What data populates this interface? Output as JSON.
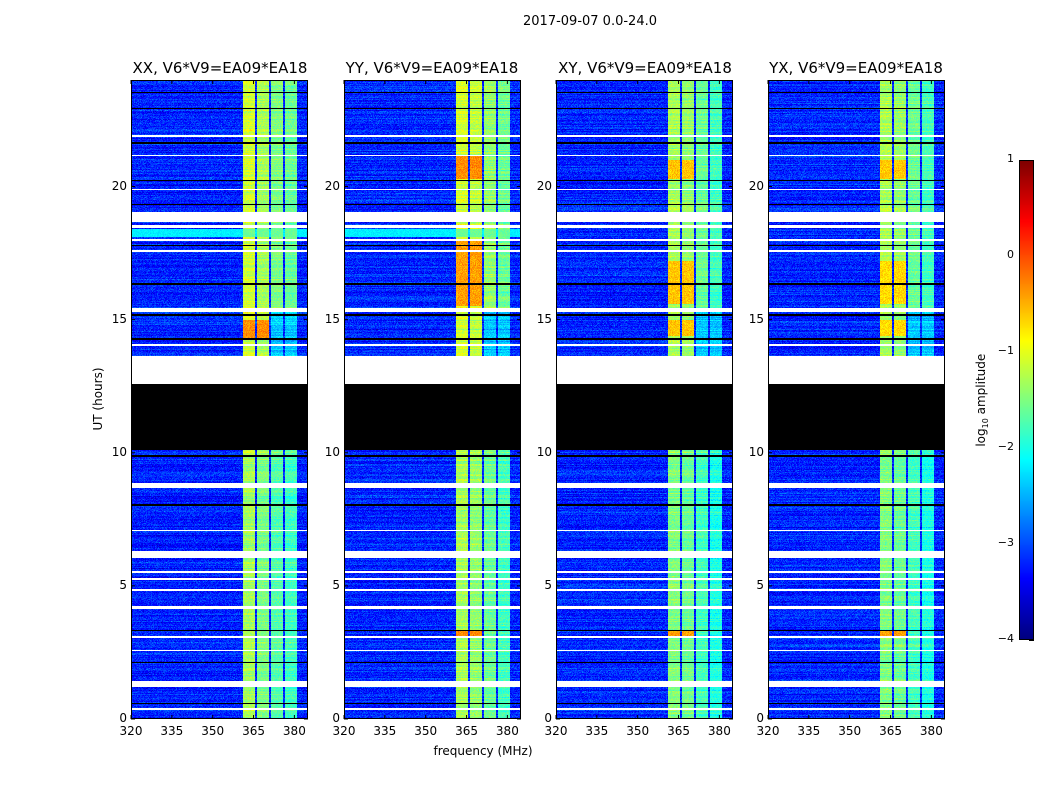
{
  "suptitle": "2017-09-07 0.0-24.0",
  "chart_data": {
    "type": "heatmap",
    "xlabel": "frequency (MHz)",
    "ylabel": "UT (hours)",
    "xlim": [
      320,
      385
    ],
    "ylim": [
      0,
      24
    ],
    "xticks": [
      320,
      335,
      350,
      365,
      380
    ],
    "yticks": [
      0,
      5,
      10,
      15,
      20
    ],
    "colorbar": {
      "label_main": "log",
      "label_sub": "10",
      "label_rest": " amplitude",
      "colormap": "jet",
      "range": [
        -4,
        1
      ],
      "ticks": [
        1,
        0,
        -1,
        -2,
        -3,
        -4
      ],
      "tick_labels": [
        "1",
        "0",
        "−1",
        "−2",
        "−3",
        "−4"
      ]
    },
    "background_level": -3.2,
    "bands_mhz": [
      [
        361,
        365.6
      ],
      [
        366.3,
        370.6
      ],
      [
        371.4,
        375.8
      ],
      [
        376.5,
        380.8
      ]
    ],
    "flagged_white_hours": [
      [
        18.65,
        19.05
      ],
      [
        18.45,
        18.55
      ],
      [
        17.95,
        18.02
      ],
      [
        12.6,
        13.65
      ],
      [
        8.68,
        8.86
      ],
      [
        6.05,
        6.3
      ],
      [
        5.47,
        5.55
      ],
      [
        5.23,
        5.3
      ],
      [
        4.82,
        4.9
      ],
      [
        4.15,
        4.23
      ],
      [
        3.05,
        3.1
      ],
      [
        1.2,
        1.42
      ],
      [
        0.32,
        0.4
      ],
      [
        21.85,
        21.92
      ],
      [
        21.15,
        21.2
      ],
      [
        19.85,
        19.9
      ],
      [
        17.55,
        17.6
      ],
      [
        15.3,
        15.45
      ],
      [
        14.0,
        14.08
      ],
      [
        7.05,
        7.1
      ],
      [
        2.55,
        2.6
      ]
    ],
    "zero_black_hours": [
      [
        10.1,
        12.6
      ],
      [
        23.5,
        23.55
      ],
      [
        22.9,
        22.95
      ],
      [
        21.6,
        21.66
      ],
      [
        20.2,
        20.26
      ],
      [
        19.3,
        19.36
      ],
      [
        17.75,
        17.8
      ],
      [
        16.3,
        16.36
      ],
      [
        15.15,
        15.2
      ],
      [
        14.25,
        14.3
      ],
      [
        9.85,
        9.9
      ],
      [
        8.0,
        8.06
      ],
      [
        3.3,
        3.35
      ],
      [
        2.1,
        2.15
      ],
      [
        0.55,
        0.6
      ]
    ],
    "panels": [
      {
        "title": "XX, V6*V9=EA09*EA18",
        "band_levels": [
          -1.1,
          -1.3,
          -1.5,
          -1.6
        ],
        "hot": [
          {
            "hours": [
              14.3,
              15.0
            ],
            "bands": [
              0,
              1
            ],
            "level": -0.3
          },
          {
            "hours": [
              18.1,
              18.4
            ],
            "bands": [
              -1
            ],
            "level": -2.2
          }
        ]
      },
      {
        "title": "YY, V6*V9=EA09*EA18",
        "band_levels": [
          -1.1,
          -1.2,
          -1.4,
          -1.6
        ],
        "hot": [
          {
            "hours": [
              20.3,
              21.2
            ],
            "bands": [
              0,
              1
            ],
            "level": -0.3
          },
          {
            "hours": [
              15.5,
              18.0
            ],
            "bands": [
              0,
              1
            ],
            "level": -0.4
          },
          {
            "hours": [
              3.1,
              3.3
            ],
            "bands": [
              0,
              1
            ],
            "level": -0.3
          },
          {
            "hours": [
              18.1,
              18.4
            ],
            "bands": [
              -1
            ],
            "level": -2.2
          }
        ]
      },
      {
        "title": "XY, V6*V9=EA09*EA18",
        "band_levels": [
          -1.3,
          -1.4,
          -1.6,
          -1.8
        ],
        "hot": [
          {
            "hours": [
              20.3,
              21.0
            ],
            "bands": [
              0,
              1
            ],
            "level": -0.6
          },
          {
            "hours": [
              15.6,
              17.2
            ],
            "bands": [
              0,
              1
            ],
            "level": -0.6
          },
          {
            "hours": [
              14.4,
              15.0
            ],
            "bands": [
              0,
              1
            ],
            "level": -0.6
          },
          {
            "hours": [
              3.1,
              3.3
            ],
            "bands": [
              0,
              1
            ],
            "level": -0.4
          }
        ]
      },
      {
        "title": "YX, V6*V9=EA09*EA18",
        "band_levels": [
          -1.3,
          -1.4,
          -1.6,
          -1.8
        ],
        "hot": [
          {
            "hours": [
              20.3,
              21.0
            ],
            "bands": [
              0,
              1
            ],
            "level": -0.6
          },
          {
            "hours": [
              15.6,
              17.2
            ],
            "bands": [
              0,
              1
            ],
            "level": -0.7
          },
          {
            "hours": [
              14.4,
              15.0
            ],
            "bands": [
              0,
              1
            ],
            "level": -0.7
          },
          {
            "hours": [
              3.1,
              3.3
            ],
            "bands": [
              0,
              1
            ],
            "level": -0.4
          }
        ]
      }
    ]
  }
}
